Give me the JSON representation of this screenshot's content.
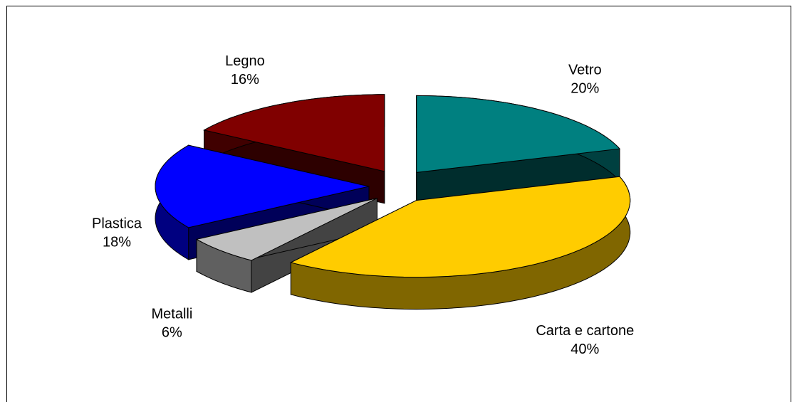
{
  "chart_data": {
    "type": "pie3d",
    "categories": [
      "Vetro",
      "Carta e cartone",
      "Metalli",
      "Plastica",
      "Legno"
    ],
    "values": [
      20,
      40,
      6,
      18,
      16
    ],
    "value_labels": [
      "20%",
      "40%",
      "6%",
      "18%",
      "16%"
    ],
    "colors": [
      "#008080",
      "#FFCC00",
      "#C0C0C0",
      "#0000FF",
      "#800000"
    ]
  }
}
